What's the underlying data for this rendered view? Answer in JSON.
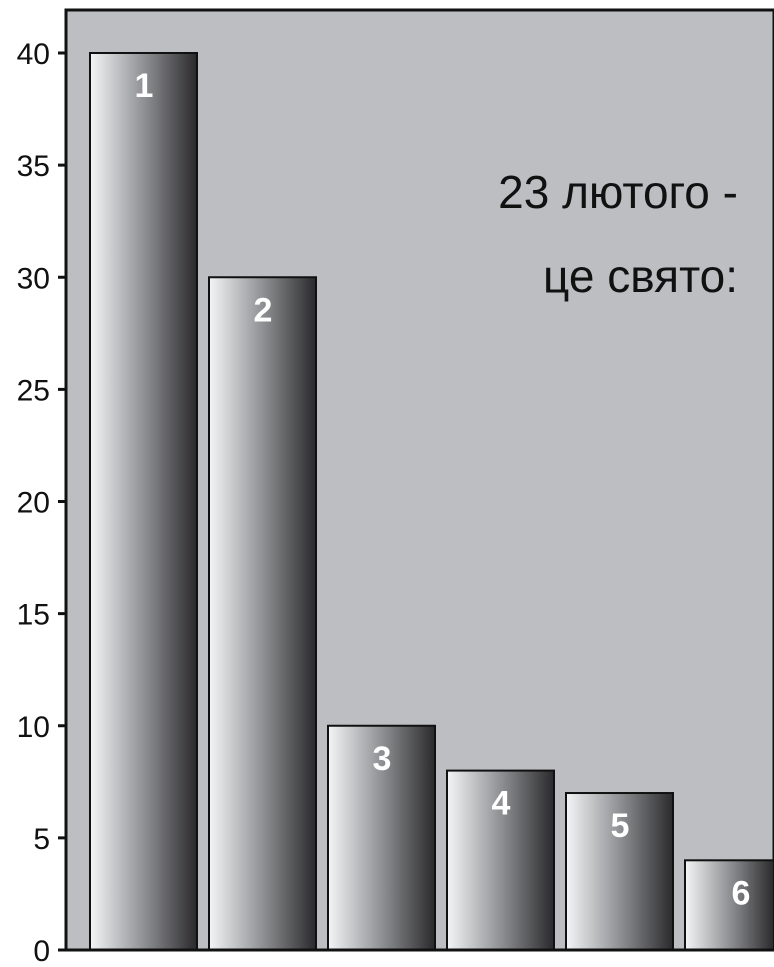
{
  "chart_data": {
    "type": "bar",
    "title_lines": [
      "23 лютого -",
      "це свято:"
    ],
    "categories": [
      "1",
      "2",
      "3",
      "4",
      "5",
      "6"
    ],
    "values": [
      40,
      30,
      10,
      8,
      7,
      4
    ],
    "ylim": [
      0,
      40
    ],
    "yticks": [
      "0",
      "5",
      "10",
      "15",
      "20",
      "25",
      "30",
      "35",
      "40"
    ],
    "ytick_values": [
      0,
      5,
      10,
      15,
      20,
      25,
      30,
      35,
      40
    ],
    "grid": false,
    "legend": "none",
    "colors": {
      "plot_background": "#bdbec2",
      "bar_light": "#f4f5f6",
      "bar_dark": "#2a2a2c",
      "bar_label": "#ffffff",
      "axis": "#111111"
    }
  }
}
